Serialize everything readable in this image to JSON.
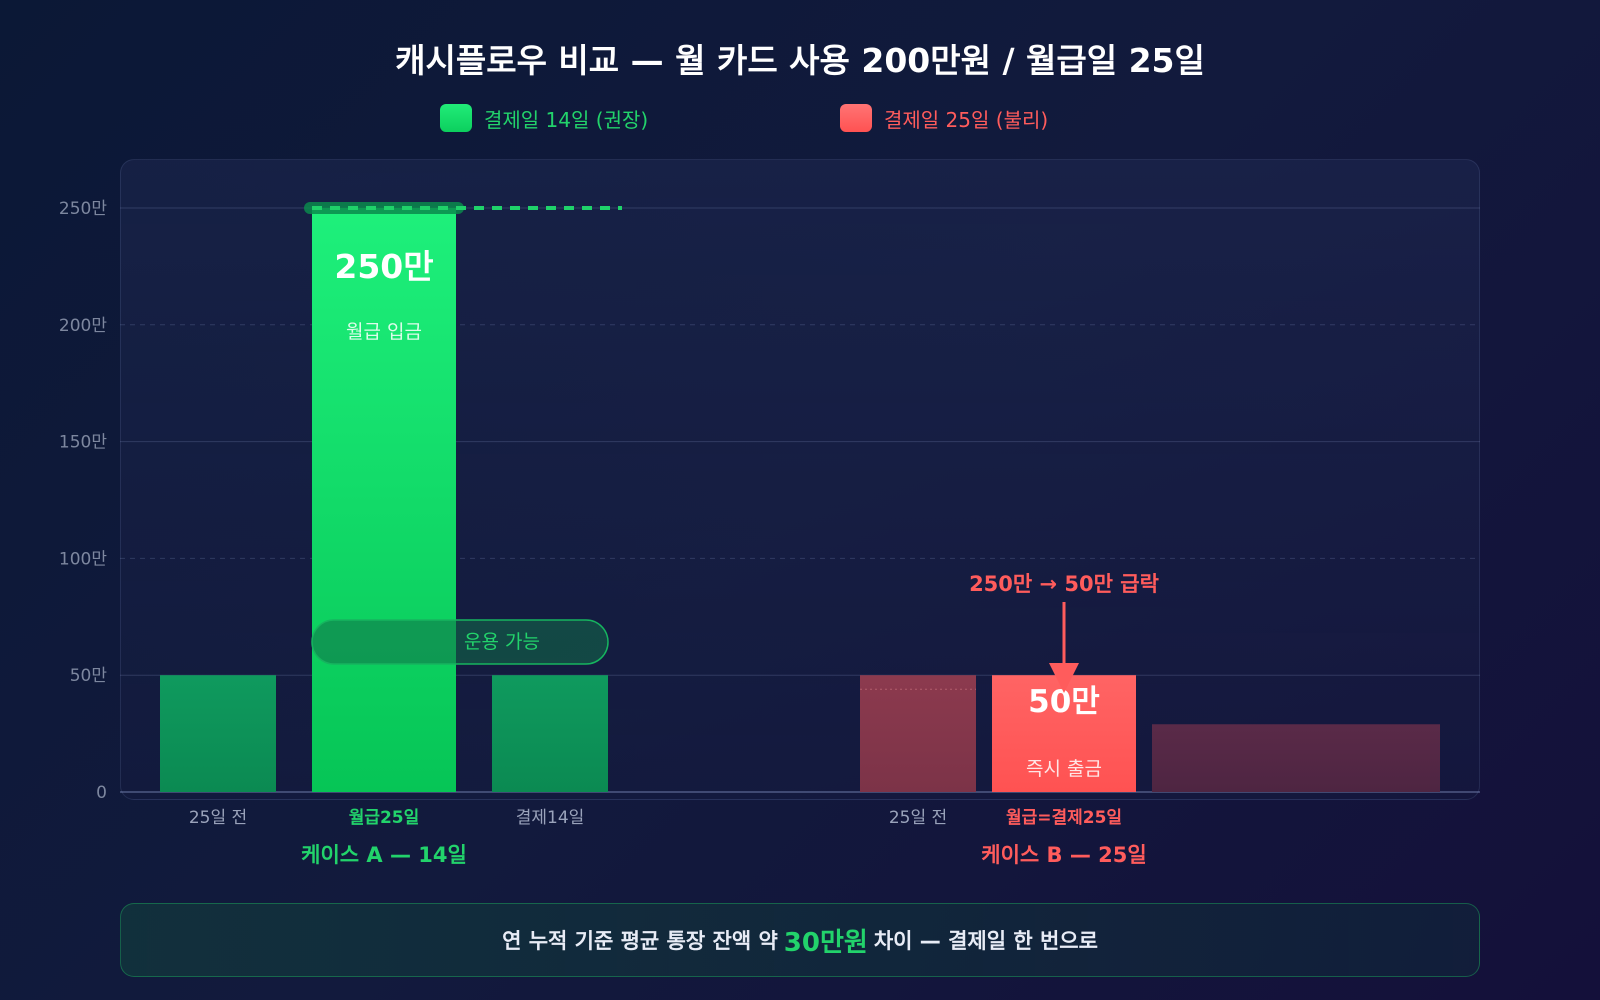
{
  "title": "캐시플로우 비교 — 월 카드 사용 200만원 / 월급일 25일",
  "legend": [
    {
      "label": "결제일 14일 (권장)",
      "color": "#22d36b"
    },
    {
      "label": "결제일 25일 (불리)",
      "color": "#ff5c5c"
    }
  ],
  "chart_data": {
    "type": "bar",
    "y_ticks": [
      "0",
      "50만",
      "100만",
      "150만",
      "200만",
      "250만"
    ],
    "ylim": [
      0,
      250
    ],
    "y_unit": "만원",
    "grid": true,
    "groups": [
      {
        "label": "케이스 A — 14일",
        "color": "#22d36b",
        "bars": [
          {
            "category": "25일 전",
            "value": 50
          },
          {
            "category": "월급25일",
            "value": 250,
            "value_label": "250만",
            "sub_label": "월급 입금",
            "highlight": true
          },
          {
            "category": "결제14일",
            "value": 50
          }
        ]
      },
      {
        "label": "케이스 B — 25일",
        "color": "#ff5c5c",
        "bars": [
          {
            "category": "25일 전",
            "value": 50
          },
          {
            "category": "월급=결제25일",
            "value": 50,
            "value_label": "50만",
            "sub_label": "즉시 출금",
            "highlight": true
          },
          {
            "category": "",
            "value": 29
          }
        ]
      }
    ],
    "annotations": {
      "case_a_pill": "운용 가능",
      "case_b_arrow": "250만 → 50만 급락"
    }
  },
  "callout": {
    "prefix": "연 누적 기준 평균 통장 잔액 약",
    "highlight": "30만원",
    "suffix": "차이 — 결제일 한 번으로"
  }
}
